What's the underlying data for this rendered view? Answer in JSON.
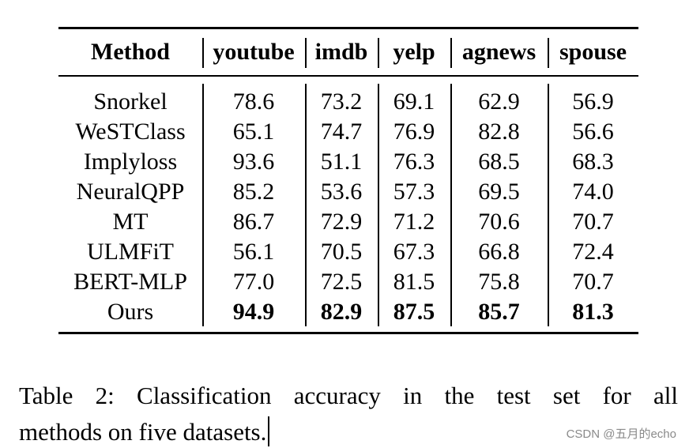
{
  "table": {
    "headers": [
      "Method",
      "youtube",
      "imdb",
      "yelp",
      "agnews",
      "spouse"
    ],
    "rows": [
      {
        "method": "Snorkel",
        "values": [
          "78.6",
          "73.2",
          "69.1",
          "62.9",
          "56.9"
        ]
      },
      {
        "method": "WeSTClass",
        "values": [
          "65.1",
          "74.7",
          "76.9",
          "82.8",
          "56.6"
        ]
      },
      {
        "method": "Implyloss",
        "values": [
          "93.6",
          "51.1",
          "76.3",
          "68.5",
          "68.3"
        ]
      },
      {
        "method": "NeuralQPP",
        "values": [
          "85.2",
          "53.6",
          "57.3",
          "69.5",
          "74.0"
        ]
      },
      {
        "method": "MT",
        "values": [
          "86.7",
          "72.9",
          "71.2",
          "70.6",
          "70.7"
        ]
      },
      {
        "method": "ULMFiT",
        "values": [
          "56.1",
          "70.5",
          "67.3",
          "66.8",
          "72.4"
        ]
      },
      {
        "method": "BERT-MLP",
        "values": [
          "77.0",
          "72.5",
          "81.5",
          "75.8",
          "70.7"
        ]
      },
      {
        "method": "Ours",
        "values": [
          "94.9",
          "82.9",
          "87.5",
          "85.7",
          "81.3"
        ],
        "bold": true
      }
    ]
  },
  "caption": {
    "line1": "Table 2:  Classification accuracy in the test set for all",
    "line2": "methods on five datasets."
  },
  "watermark": "CSDN @五月的echo"
}
